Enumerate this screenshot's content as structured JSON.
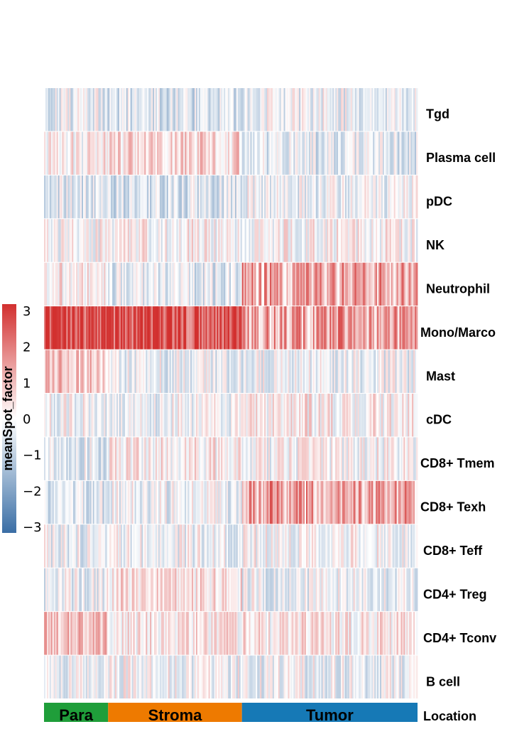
{
  "chart_data": {
    "type": "heatmap",
    "title": "",
    "value_name": "meanSpot_factor",
    "rows": [
      "Tgd",
      "Plasma cell",
      "pDC",
      "NK",
      "Neutrophil",
      "Mono/Marco",
      "Mast",
      "cDC",
      "CD8+ Tmem",
      "CD8+ Texh",
      "CD8+ Teff",
      "CD4+ Treg",
      "CD4+ Tconv",
      "B cell"
    ],
    "column_annotation": {
      "name": "Location",
      "groups": [
        {
          "label": "Para",
          "count": 46,
          "color": "#1f9e3a"
        },
        {
          "label": "Stroma",
          "count": 96,
          "color": "#ee7a00"
        },
        {
          "label": "Tumor",
          "count": 126,
          "color": "#1679b6"
        }
      ]
    },
    "group_mean_values": {
      "Para": [
        -0.3,
        0.2,
        -0.4,
        0.0,
        0.3,
        2.6,
        0.9,
        -0.1,
        -0.3,
        -0.4,
        -0.2,
        -0.2,
        0.9,
        -0.2
      ],
      "Stroma": [
        -0.5,
        0.6,
        -0.5,
        0.1,
        -0.4,
        2.6,
        -0.2,
        -0.1,
        0.2,
        -0.2,
        -0.1,
        0.4,
        0.3,
        -0.1
      ],
      "Tumor": [
        -0.2,
        -0.4,
        -0.2,
        0.1,
        1.2,
        1.3,
        -0.2,
        0.2,
        0.0,
        1.3,
        0.0,
        -0.2,
        0.3,
        -0.2
      ]
    },
    "color_scale": {
      "min": -3,
      "max": 3,
      "stops": [
        {
          "value": -3,
          "color": "#3a6ea5"
        },
        {
          "value": 0,
          "color": "#ffffff"
        },
        {
          "value": 3,
          "color": "#d2302f"
        }
      ],
      "ticks": [
        "3",
        "2",
        "1",
        "0",
        "−1",
        "−2",
        "−3"
      ]
    }
  }
}
